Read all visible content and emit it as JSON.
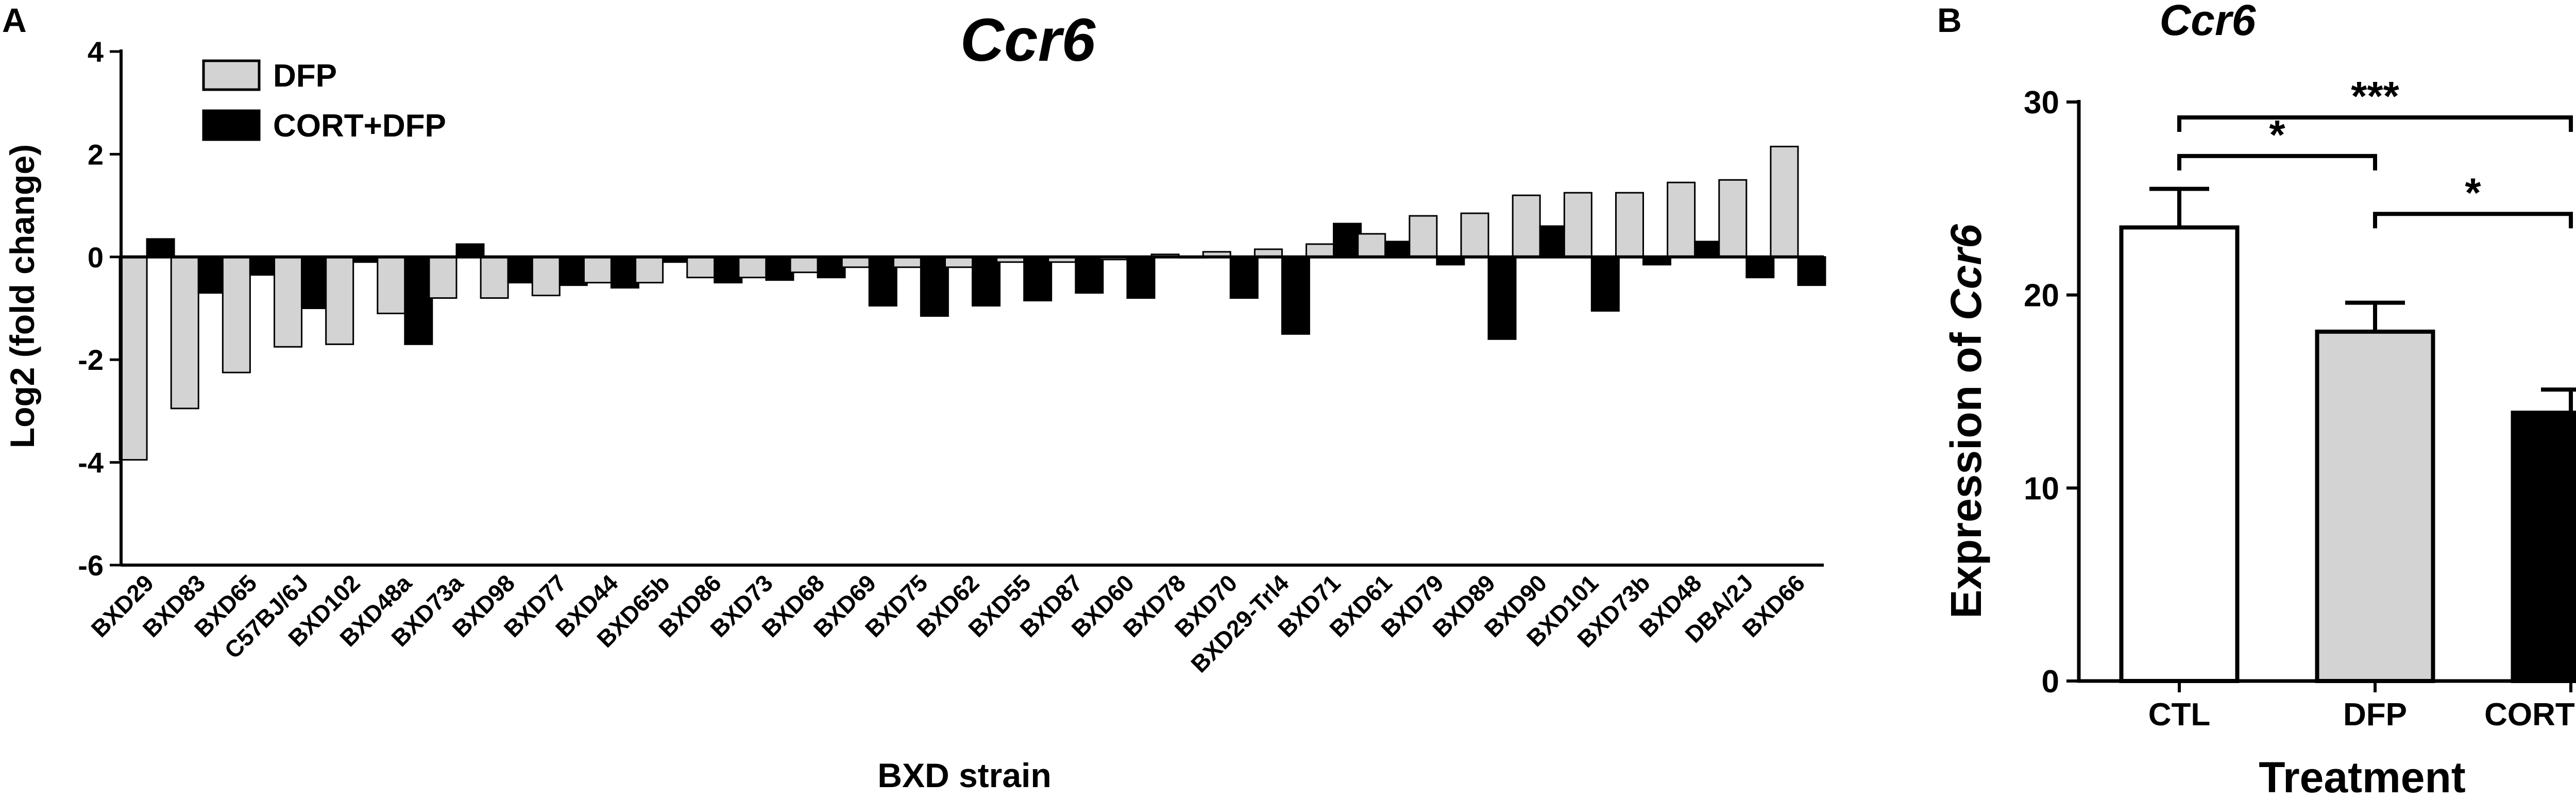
{
  "colors": {
    "dfp": "#d3d3d3",
    "cort_dfp": "#000000",
    "ctl": "#ffffff",
    "stroke": "#000000"
  },
  "chart_data": [
    {
      "panel": "A",
      "type": "bar",
      "title": "Ccr6",
      "xlabel": "BXD strain",
      "ylabel": "Log2 (fold change)",
      "ylim": [
        -6,
        4
      ],
      "yticks": [
        "4",
        "2",
        "0",
        "-2",
        "-4",
        "-6"
      ],
      "legend_position": "top-left",
      "categories": [
        "BXD29",
        "BXD83",
        "BXD65",
        "C57BJ/6J",
        "BXD102",
        "BXD48a",
        "BXD73a",
        "BXD98",
        "BXD77",
        "BXD44",
        "BXD65b",
        "BXD86",
        "BXD73",
        "BXD68",
        "BXD69",
        "BXD75",
        "BXD62",
        "BXD55",
        "BXD87",
        "BXD60",
        "BXD78",
        "BXD70",
        "BXD29-Trl4",
        "BXD71",
        "BXD61",
        "BXD79",
        "BXD89",
        "BXD90",
        "BXD101",
        "BXD73b",
        "BXD48",
        "DBA/2J",
        "BXD66"
      ],
      "series": [
        {
          "name": "DFP",
          "values": [
            -3.95,
            -2.95,
            -2.25,
            -1.75,
            -1.7,
            -1.1,
            -0.8,
            -0.8,
            -0.75,
            -0.5,
            -0.5,
            -0.4,
            -0.4,
            -0.3,
            -0.2,
            -0.2,
            -0.2,
            -0.1,
            -0.1,
            -0.05,
            0.05,
            0.1,
            0.15,
            0.25,
            0.45,
            0.8,
            0.85,
            1.2,
            1.25,
            1.25,
            1.45,
            1.5,
            2.15
          ]
        },
        {
          "name": "CORT+DFP",
          "values": [
            0.35,
            -0.7,
            -0.35,
            -1.0,
            -0.1,
            -1.7,
            0.25,
            -0.5,
            -0.55,
            -0.6,
            -0.1,
            -0.5,
            -0.45,
            -0.4,
            -0.95,
            -1.15,
            -0.95,
            -0.85,
            -0.7,
            -0.8,
            0.0,
            -0.8,
            -1.5,
            0.65,
            0.3,
            -0.15,
            -1.6,
            0.6,
            -1.05,
            -0.15,
            0.3,
            -0.4,
            -0.55
          ]
        }
      ]
    },
    {
      "panel": "B",
      "type": "bar",
      "title": "Ccr6",
      "xlabel": "Treatment",
      "ylabel_prefix": "Expression of ",
      "ylabel_italic": "Ccr6",
      "ylim": [
        0,
        30
      ],
      "yticks": [
        "30",
        "20",
        "10",
        "0"
      ],
      "categories": [
        "CTL",
        "DFP",
        "CORT+DFP"
      ],
      "values": [
        23.5,
        18.1,
        13.9
      ],
      "errors": [
        2.0,
        1.5,
        1.2
      ],
      "significance": [
        {
          "from": 0,
          "to": 2,
          "label": "***",
          "level": 29.2
        },
        {
          "from": 0,
          "to": 1,
          "label": "*",
          "level": 27.2
        },
        {
          "from": 1,
          "to": 2,
          "label": "*",
          "level": 24.2
        }
      ]
    }
  ]
}
